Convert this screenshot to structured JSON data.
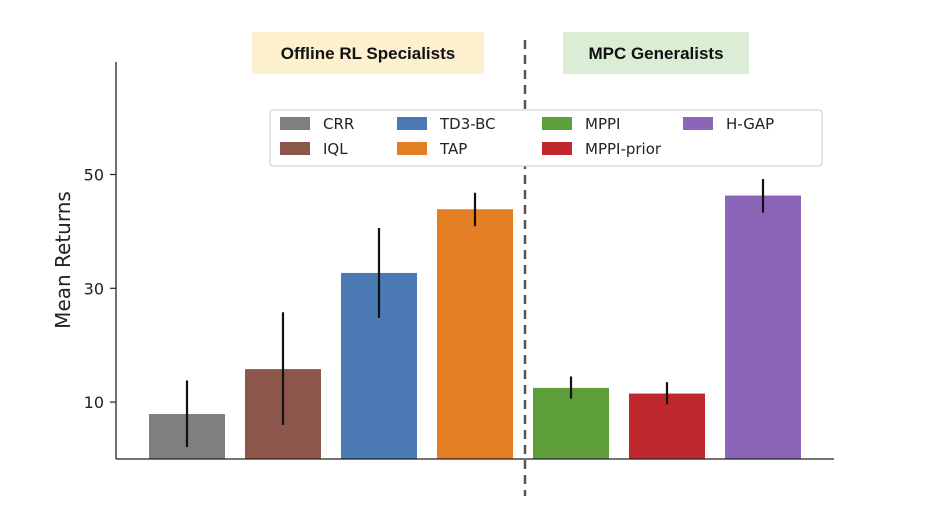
{
  "chart_data": {
    "type": "bar",
    "categories": [
      "CRR",
      "IQL",
      "TD3-BC",
      "TAP",
      "MPPI",
      "MPPI-prior",
      "H-GAP"
    ],
    "values": [
      7.9,
      15.8,
      32.7,
      43.9,
      12.5,
      11.5,
      46.3
    ],
    "error_low": [
      2.1,
      6.0,
      24.8,
      40.9,
      10.6,
      9.6,
      43.3
    ],
    "error_high": [
      13.8,
      25.8,
      40.6,
      46.8,
      14.5,
      13.5,
      49.2
    ],
    "colors": [
      "#7f7f7f",
      "#8c564b",
      "#4a79b4",
      "#e57f26",
      "#5e9f3c",
      "#c0272d",
      "#8a65b8"
    ],
    "ylabel": "Mean Returns",
    "yticks": [
      10,
      30,
      50
    ],
    "ylim": [
      0,
      60
    ],
    "grid": false,
    "legend": {
      "placement": "top-center",
      "entries": [
        [
          "CRR",
          "IQL"
        ],
        [
          "TD3-BC",
          "TAP"
        ],
        [
          "MPPI",
          "MPPI-prior"
        ],
        [
          "H-GAP"
        ]
      ]
    },
    "groups": [
      {
        "label": "Offline RL Specialists",
        "color": "#fdf0cf",
        "start": 0,
        "end": 3
      },
      {
        "label": "MPC Generalists",
        "color": "#dcedd5",
        "start": 4,
        "end": 6
      }
    ],
    "divider": {
      "after_index": 3,
      "style": "dashed"
    }
  }
}
